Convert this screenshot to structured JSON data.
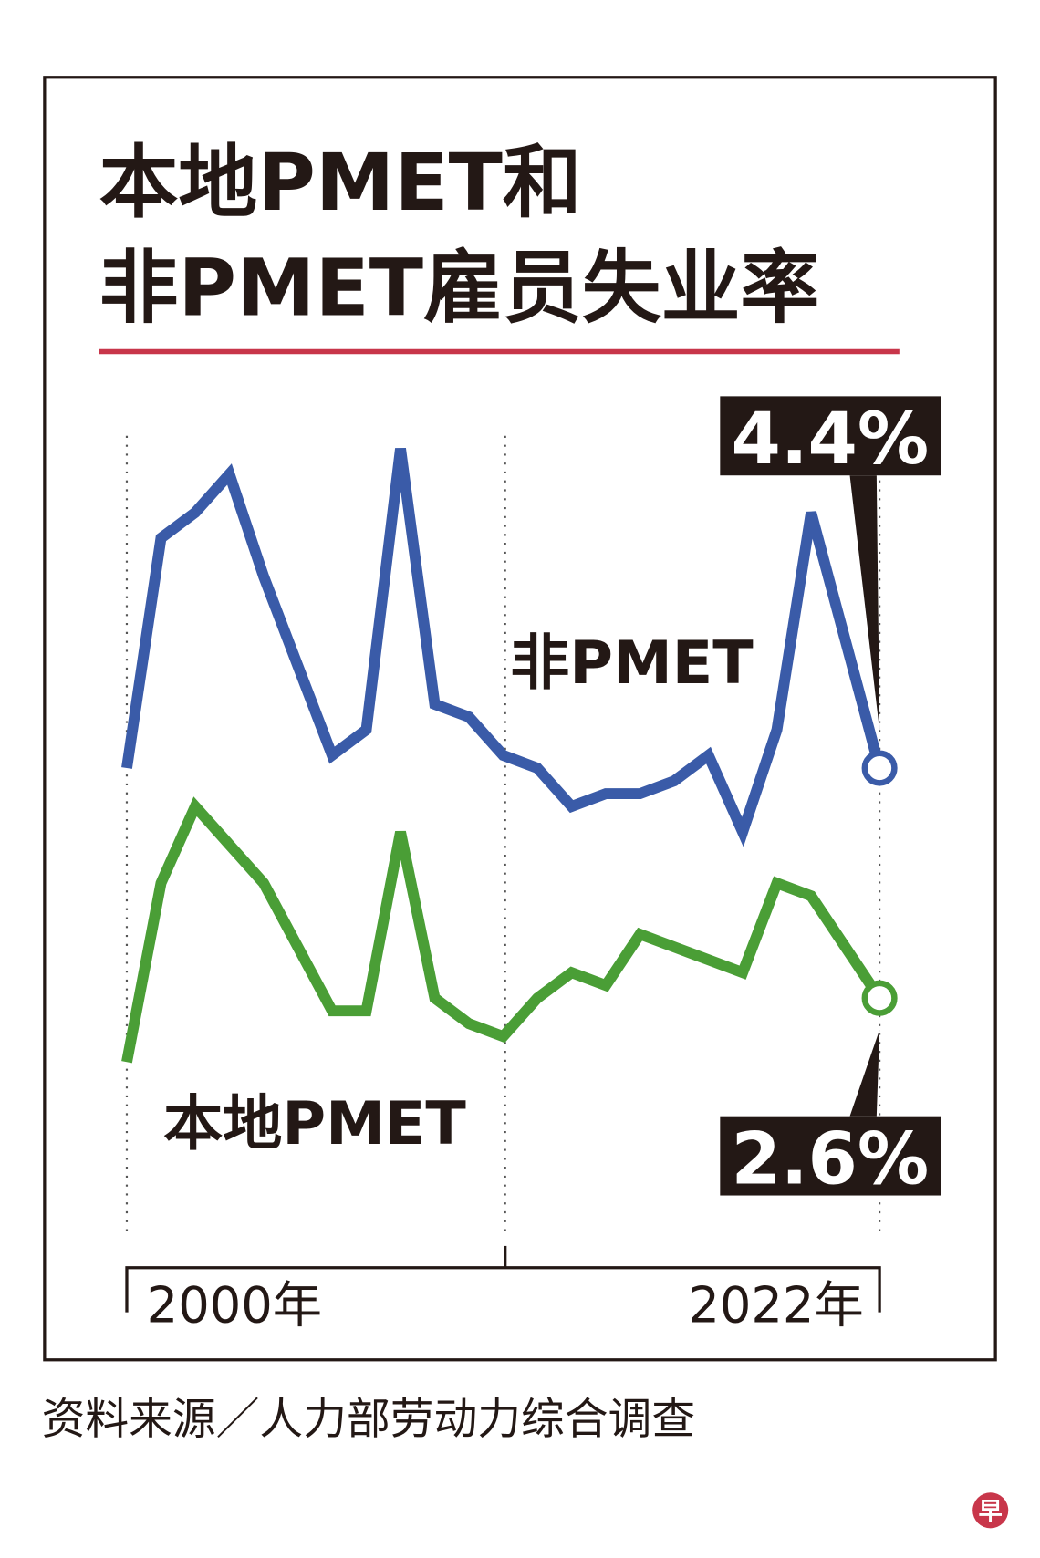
{
  "chart_data": {
    "type": "line",
    "title": [
      "本地PMET和",
      "非PMET雇员失业率"
    ],
    "categories": [
      "2000年",
      null,
      null,
      null,
      null,
      null,
      null,
      null,
      null,
      null,
      null,
      null,
      null,
      null,
      null,
      null,
      null,
      null,
      null,
      null,
      null,
      null,
      "2022年"
    ],
    "series": [
      {
        "name": "非PMET",
        "color": "#3a5ba8",
        "values": [
          4.4,
          6.2,
          6.4,
          6.7,
          5.9,
          5.2,
          4.5,
          4.7,
          6.9,
          4.9,
          4.8,
          4.5,
          4.4,
          4.1,
          4.2,
          4.2,
          4.3,
          4.5,
          3.9,
          4.7,
          6.4,
          5.4,
          4.4
        ],
        "value_labels": [
          null,
          null,
          null,
          null,
          null,
          null,
          null,
          null,
          null,
          null,
          null,
          null,
          null,
          null,
          null,
          null,
          null,
          null,
          null,
          null,
          null,
          null,
          "4.4%"
        ]
      },
      {
        "name": "本地PMET",
        "color": "#4a9e36",
        "values": [
          2.1,
          3.5,
          4.1,
          3.8,
          3.5,
          3.0,
          2.5,
          2.5,
          3.9,
          2.6,
          2.4,
          2.3,
          2.6,
          2.8,
          2.7,
          3.1,
          3.0,
          2.9,
          2.8,
          3.5,
          3.4,
          3.0,
          2.6
        ],
        "value_labels": [
          null,
          null,
          null,
          null,
          null,
          null,
          null,
          null,
          null,
          null,
          null,
          null,
          null,
          null,
          null,
          null,
          null,
          null,
          null,
          null,
          null,
          null,
          "2.6%"
        ]
      }
    ],
    "ylim": [
      0.8,
      7.0
    ],
    "source": "资料来源／人力部劳动力综合调查",
    "logo": "早"
  }
}
